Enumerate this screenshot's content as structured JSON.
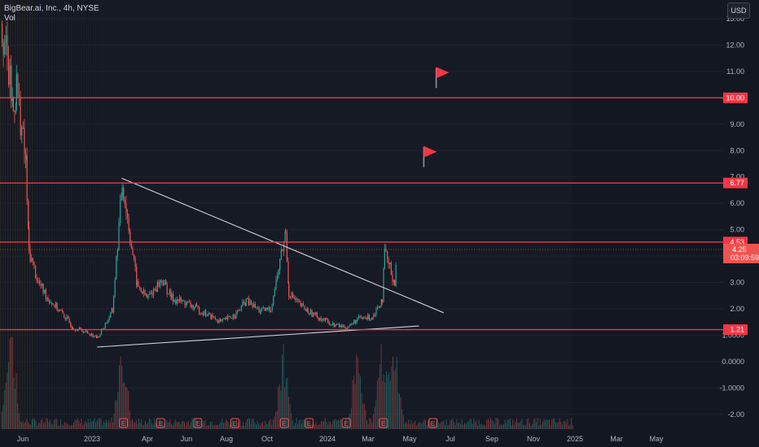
{
  "header": {
    "symbol_line": "BigBear.ai, Inc., 4h, NYSE",
    "indicator_line": "Vol",
    "currency_button": "USD"
  },
  "colors": {
    "background": "#131722",
    "up": "#26a69a",
    "down": "#ef5350",
    "level_line": "#f23645",
    "trend_line": "#d1d4dc",
    "flag": "#f23645"
  },
  "chart_data": {
    "type": "candlestick",
    "price_axis_ticks": [
      "13.00",
      "12.00",
      "11.00",
      "10.00",
      "9.00",
      "8.00",
      "7.00",
      "6.00",
      "5.00",
      "4.00",
      "3.00",
      "2.00",
      "1.0000",
      "0.0000",
      "-1.0000",
      "-2.00"
    ],
    "x_tick_labels": [
      "Jun",
      "2023",
      "Apr",
      "Jun",
      "Aug",
      "Oct",
      "2024",
      "Mar",
      "May",
      "Jul",
      "Sep",
      "Nov",
      "2025",
      "Mar",
      "May"
    ],
    "horizontal_levels": [
      {
        "price": 10.0,
        "label": "10.00"
      },
      {
        "price": 6.77,
        "label": "6.77"
      },
      {
        "price": 4.53,
        "label": "4.53"
      },
      {
        "price": 1.21,
        "label": "1.21"
      }
    ],
    "current_price": {
      "price": 4.25,
      "label": "4.25",
      "countdown": "03:09:59"
    },
    "trendlines": [
      {
        "name": "descending-resistance",
        "from": {
          "time": "2023-02",
          "price": 6.95
        },
        "to": {
          "time": "2025-04",
          "price": 1.85
        }
      },
      {
        "name": "ascending-support",
        "from": {
          "time": "2022-12",
          "price": 0.55
        },
        "to": {
          "time": "2025-02",
          "price": 1.35
        }
      }
    ],
    "price_path": [
      [
        "2022-05",
        12.8
      ],
      [
        "2022-05",
        9.5
      ],
      [
        "2022-05",
        10.5
      ],
      [
        "2022-06",
        7.5
      ],
      [
        "2022-06",
        4.2
      ],
      [
        "2022-07",
        3.0
      ],
      [
        "2022-08",
        2.4
      ],
      [
        "2022-09",
        1.8
      ],
      [
        "2022-10",
        1.3
      ],
      [
        "2022-11",
        1.1
      ],
      [
        "2022-12",
        0.9
      ],
      [
        "2023-01",
        1.9
      ],
      [
        "2023-02",
        6.8
      ],
      [
        "2023-03",
        2.9
      ],
      [
        "2023-04",
        2.4
      ],
      [
        "2023-05",
        3.1
      ],
      [
        "2023-06",
        2.4
      ],
      [
        "2023-07",
        2.2
      ],
      [
        "2023-08",
        2.0
      ],
      [
        "2023-09",
        1.7
      ],
      [
        "2023-10",
        1.5
      ],
      [
        "2023-11",
        1.8
      ],
      [
        "2023-12",
        2.3
      ],
      [
        "2024-01",
        1.9
      ],
      [
        "2024-02",
        2.0
      ],
      [
        "2024-03",
        4.9
      ],
      [
        "2024-03",
        2.6
      ],
      [
        "2024-04",
        2.2
      ],
      [
        "2024-05",
        1.9
      ],
      [
        "2024-06",
        1.6
      ],
      [
        "2024-07",
        1.4
      ],
      [
        "2024-08",
        1.3
      ],
      [
        "2024-09",
        1.6
      ],
      [
        "2024-10",
        1.7
      ],
      [
        "2024-11",
        2.4
      ],
      [
        "2024-11",
        4.1
      ],
      [
        "2024-12",
        3.0
      ],
      [
        "2024-12",
        4.25
      ]
    ],
    "volume_spikes": [
      "2022-05",
      "2023-02",
      "2024-03",
      "2024-09",
      "2024-11",
      "2024-12"
    ],
    "earnings_markers": [
      "2023-02",
      "2023-05",
      "2023-08",
      "2023-11",
      "2024-03",
      "2024-05",
      "2024-08",
      "2024-11",
      "2025-03"
    ],
    "flags": [
      {
        "time": "2025-03",
        "price": 10.8
      },
      {
        "time": "2025-02",
        "price": 7.8
      }
    ],
    "ylim": [
      -2.2,
      13.3
    ]
  }
}
